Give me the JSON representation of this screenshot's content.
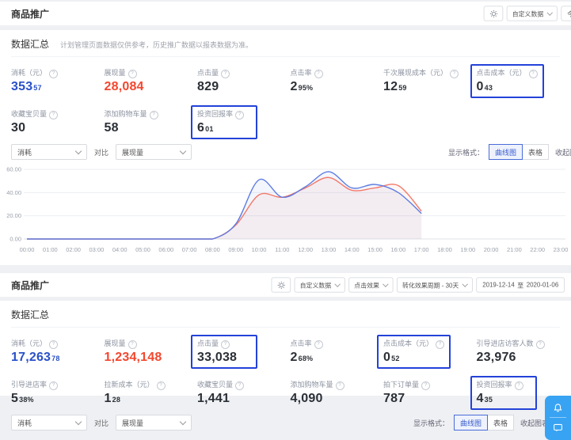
{
  "top_panel": {
    "header": {
      "title": "商品推广"
    },
    "toolbar": {
      "custom_data": "自定义数据",
      "date": "今日"
    },
    "summary": {
      "title": "数据汇总",
      "note": "计划管理页面数据仅供参考，历史推广数据以报表数据为准。",
      "rows": [
        [
          {
            "label": "消耗（元）",
            "main": "353",
            "dec": "57",
            "color": "blue"
          },
          {
            "label": "展现量",
            "main": "28,084",
            "dec": "",
            "color": "red"
          },
          {
            "label": "点击量",
            "main": "829",
            "dec": "",
            "color": "dark"
          },
          {
            "label": "点击率",
            "main": "2",
            "dec": "95%",
            "color": "dark"
          },
          {
            "label": "千次展现成本（元）",
            "main": "12",
            "dec": "59",
            "color": "dark"
          },
          {
            "label": "点击成本（元）",
            "main": "0",
            "dec": "43",
            "color": "dark",
            "highlighted": true
          }
        ],
        [
          {
            "label": "收藏宝贝量",
            "main": "30",
            "dec": "",
            "color": "dark"
          },
          {
            "label": "添加购物车量",
            "main": "58",
            "dec": "",
            "color": "dark"
          },
          {
            "label": "投资回报率",
            "main": "6",
            "dec": "01",
            "color": "dark",
            "highlighted": true
          }
        ]
      ]
    },
    "compare": {
      "metric1": "消耗",
      "vs": "对比",
      "metric2": "展现量"
    },
    "display": {
      "label": "显示格式：",
      "chart_option": "曲线图",
      "table_option": "表格",
      "collapse": "收起图表"
    }
  },
  "chart_data": {
    "type": "line",
    "x": [
      "00:00",
      "01:00",
      "02:00",
      "03:00",
      "04:00",
      "05:00",
      "06:00",
      "07:00",
      "08:00",
      "09:00",
      "10:00",
      "11:00",
      "12:00",
      "13:00",
      "14:00",
      "15:00",
      "16:00",
      "17:00",
      "18:00",
      "19:00",
      "20:00",
      "21:00",
      "22:00",
      "23:00"
    ],
    "series": [
      {
        "name": "展现量",
        "color": "#f3796a",
        "values": [
          0,
          0,
          0,
          0,
          0,
          0,
          0,
          0,
          0,
          12,
          38,
          36,
          44,
          53,
          42,
          44,
          46,
          24
        ]
      },
      {
        "name": "消耗",
        "color": "#5e7ce2",
        "values": [
          0,
          0,
          0,
          0,
          0,
          0,
          0,
          0,
          0,
          13,
          51,
          36,
          45,
          58,
          44,
          47,
          40,
          22
        ]
      }
    ],
    "ylim": [
      0,
      60
    ],
    "yticks": [
      {
        "value": 0,
        "label": "0.00"
      },
      {
        "value": 20,
        "label": "20.00"
      },
      {
        "value": 40,
        "label": "40.00"
      },
      {
        "value": 60,
        "label": "60.00"
      }
    ],
    "grid": true,
    "legend": "none",
    "title": "",
    "xlabel": "",
    "ylabel": ""
  },
  "bottom_panel": {
    "header": {
      "title": "商品推广"
    },
    "toolbar": {
      "custom_data": "自定义数据",
      "effect": "点击效果",
      "period": "转化效果周期 - 30天",
      "date_start": "2019-12-14",
      "date_sep": "至",
      "date_end": "2020-01-06"
    },
    "summary": {
      "title": "数据汇总",
      "rows": [
        [
          {
            "label": "消耗（元）",
            "main": "17,263",
            "dec": "78",
            "color": "blue"
          },
          {
            "label": "展现量",
            "main": "1,234,148",
            "dec": "",
            "color": "red"
          },
          {
            "label": "点击量",
            "main": "33,038",
            "dec": "",
            "color": "dark",
            "highlighted": true
          },
          {
            "label": "点击率",
            "main": "2",
            "dec": "68%",
            "color": "dark"
          },
          {
            "label": "点击成本（元）",
            "main": "0",
            "dec": "52",
            "color": "dark",
            "highlighted": true
          },
          {
            "label": "引导进店访客人数",
            "main": "23,976",
            "dec": "",
            "color": "dark"
          }
        ],
        [
          {
            "label": "引导进店率",
            "main": "5",
            "dec": "38%",
            "color": "dark"
          },
          {
            "label": "拉新成本（元）",
            "main": "1",
            "dec": "28",
            "color": "dark"
          },
          {
            "label": "收藏宝贝量",
            "main": "1,441",
            "dec": "",
            "color": "dark"
          },
          {
            "label": "添加购物车量",
            "main": "4,090",
            "dec": "",
            "color": "dark"
          },
          {
            "label": "拍下订单量",
            "main": "787",
            "dec": "",
            "color": "dark"
          },
          {
            "label": "投资回报率",
            "main": "4",
            "dec": "35",
            "color": "dark",
            "highlighted": true
          }
        ]
      ]
    },
    "compare": {
      "metric1": "消耗",
      "vs": "对比",
      "metric2": "展现量"
    },
    "display": {
      "label": "显示格式：",
      "chart_option": "曲线图",
      "table_option": "表格",
      "collapse": "收起图表"
    }
  },
  "colors": {
    "accent_blue": "#2950c8",
    "accent_red": "#f4462e",
    "highlight_border": "#2342d9",
    "line_blue": "#5e7ce2",
    "line_red": "#f3796a",
    "widget_blue": "#38a3f2"
  }
}
